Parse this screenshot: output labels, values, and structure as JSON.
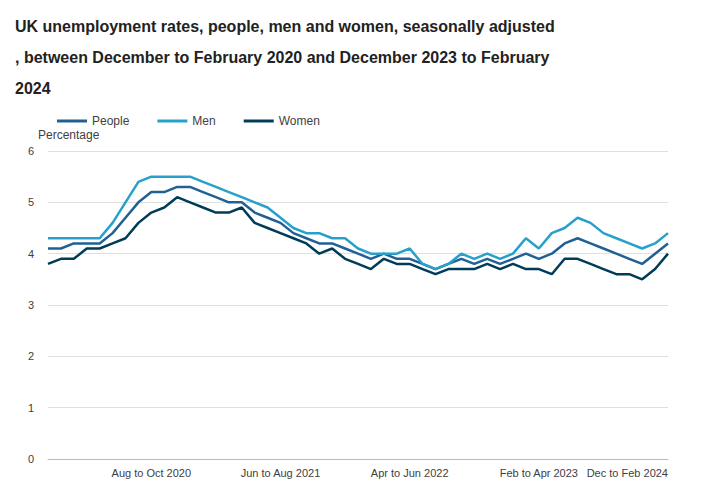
{
  "chart_data": {
    "type": "line",
    "title": "UK unemployment rates, people, men and women, seasonally adjusted, between December to February 2020 and December 2023 to February 2024",
    "y_label": "Percentage",
    "categories": [
      null,
      null,
      null,
      null,
      null,
      null,
      null,
      null,
      "Aug to Oct 2020",
      null,
      null,
      null,
      null,
      null,
      null,
      null,
      null,
      null,
      "Jun to Aug 2021",
      null,
      null,
      null,
      null,
      null,
      null,
      null,
      null,
      null,
      "Apr to Jun 2022",
      null,
      null,
      null,
      null,
      null,
      null,
      null,
      null,
      null,
      "Feb to Apr 2023",
      null,
      null,
      null,
      null,
      null,
      null,
      null,
      null,
      null,
      "Dec to Feb 2024"
    ],
    "series": [
      {
        "name": "People",
        "color": "#206095",
        "values": [
          4.1,
          4.1,
          4.2,
          4.2,
          4.2,
          4.4,
          4.7,
          5.0,
          5.2,
          5.2,
          5.3,
          5.3,
          5.2,
          5.1,
          5.0,
          5.0,
          4.8,
          4.7,
          4.6,
          4.4,
          4.3,
          4.2,
          4.2,
          4.1,
          4.0,
          3.9,
          4.0,
          3.9,
          3.9,
          3.8,
          3.7,
          3.8,
          3.9,
          3.8,
          3.9,
          3.8,
          3.9,
          4.0,
          3.9,
          4.0,
          4.2,
          4.3,
          4.2,
          4.1,
          4.0,
          3.9,
          3.8,
          4.0,
          4.2
        ]
      },
      {
        "name": "Men",
        "color": "#27a0cc",
        "values": [
          4.3,
          4.3,
          4.3,
          4.3,
          4.3,
          4.6,
          5.0,
          5.4,
          5.5,
          5.5,
          5.5,
          5.5,
          5.4,
          5.3,
          5.2,
          5.1,
          5.0,
          4.9,
          4.7,
          4.5,
          4.4,
          4.4,
          4.3,
          4.3,
          4.1,
          4.0,
          4.0,
          4.0,
          4.1,
          3.8,
          3.7,
          3.8,
          4.0,
          3.9,
          4.0,
          3.9,
          4.0,
          4.3,
          4.1,
          4.4,
          4.5,
          4.7,
          4.6,
          4.4,
          4.3,
          4.2,
          4.1,
          4.2,
          4.4
        ]
      },
      {
        "name": "Women",
        "color": "#003c57",
        "values": [
          3.8,
          3.9,
          3.9,
          4.1,
          4.1,
          4.2,
          4.3,
          4.6,
          4.8,
          4.9,
          5.1,
          5.0,
          4.9,
          4.8,
          4.8,
          4.9,
          4.6,
          4.5,
          4.4,
          4.3,
          4.2,
          4.0,
          4.1,
          3.9,
          3.8,
          3.7,
          3.9,
          3.8,
          3.8,
          3.7,
          3.6,
          3.7,
          3.7,
          3.7,
          3.8,
          3.7,
          3.8,
          3.7,
          3.7,
          3.6,
          3.9,
          3.9,
          3.8,
          3.7,
          3.6,
          3.6,
          3.5,
          3.7,
          4.0
        ]
      }
    ],
    "ylim": [
      0,
      6
    ],
    "yticks": [
      0,
      1,
      2,
      3,
      4,
      5,
      6
    ],
    "grid": true,
    "legend": "top-left"
  }
}
